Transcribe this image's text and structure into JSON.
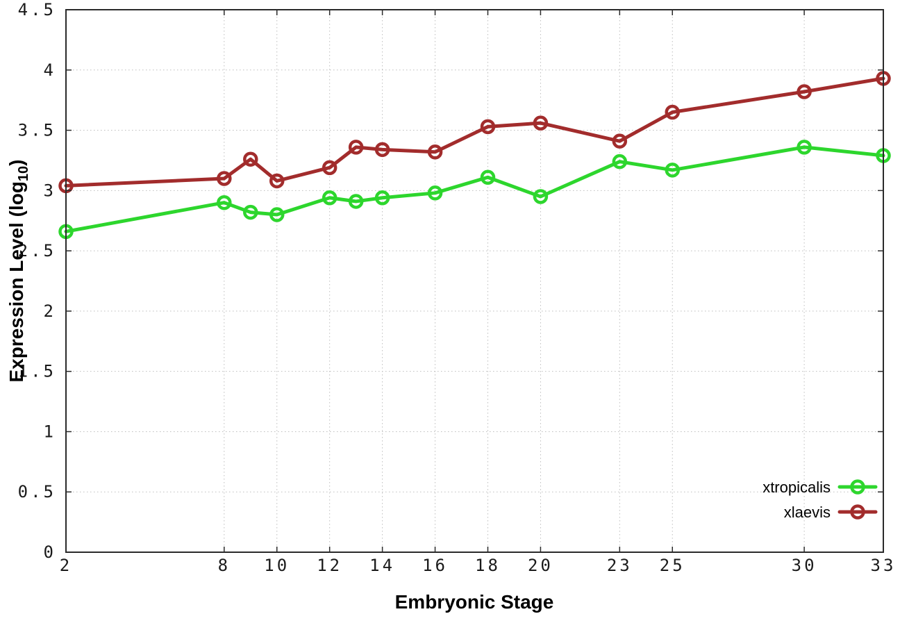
{
  "chart_data": {
    "type": "line",
    "title": "",
    "xlabel": "Embryonic Stage",
    "ylabel": "Expression Level (log10)",
    "ylabel_parts": {
      "main": "Expression Level (log",
      "sub": "10",
      "end": ")"
    },
    "xlim": [
      2,
      33
    ],
    "ylim": [
      0,
      4.5
    ],
    "grid": true,
    "legend_position": "inside-bottom-right",
    "marker": "open-circle",
    "x": [
      2,
      8,
      9,
      10,
      12,
      13,
      14,
      16,
      18,
      20,
      23,
      25,
      30,
      33
    ],
    "xticks": [
      2,
      8,
      10,
      12,
      14,
      16,
      18,
      20,
      23,
      25,
      30,
      33
    ],
    "yticks": [
      "0",
      "0.5",
      "1",
      "1.5",
      "2",
      "2.5",
      "3",
      "3.5",
      "4",
      "4.5"
    ],
    "series": [
      {
        "name": "xtropicalis",
        "color": "#2dd62d",
        "values": [
          2.66,
          2.9,
          2.82,
          2.8,
          2.94,
          2.91,
          2.94,
          2.98,
          3.11,
          2.95,
          3.24,
          3.17,
          3.36,
          3.29
        ]
      },
      {
        "name": "xlaevis",
        "color": "#a22c2c",
        "values": [
          3.04,
          3.1,
          3.26,
          3.08,
          3.19,
          3.36,
          3.34,
          3.32,
          3.53,
          3.56,
          3.41,
          3.65,
          3.82,
          3.93
        ]
      }
    ]
  }
}
